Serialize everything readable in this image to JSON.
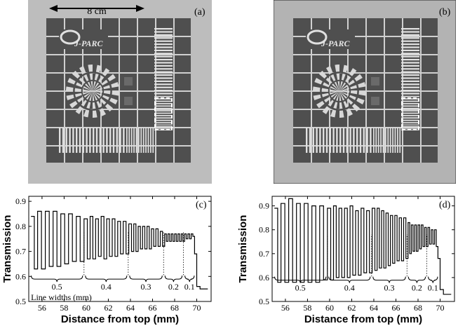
{
  "panels": {
    "a": {
      "tag": "(a)",
      "scale_label": "8 cm",
      "logo_text": "J-PARC"
    },
    "b": {
      "tag": "(b)",
      "logo_text": "J-PARC"
    }
  },
  "colors": {
    "background_gray": "#b9b9b9",
    "plate_dark": "#4f4f4f",
    "grid_light": "#d9d9d9",
    "trace": "#000000"
  },
  "chart_data": [
    {
      "id": "c",
      "tag": "(c)",
      "type": "line",
      "xlabel": "Distance from top (mm)",
      "ylabel": "Transmission",
      "xlim": [
        54.8,
        71.3
      ],
      "ylim": [
        0.5,
        0.92
      ],
      "xticks": [
        56,
        58,
        60,
        62,
        64,
        66,
        68,
        70
      ],
      "yticks": [
        0.5,
        0.6,
        0.7,
        0.8,
        0.9
      ],
      "yticklabels": [
        "0.5",
        "0.6",
        "0.7",
        "0.8",
        "0.9"
      ],
      "annotation": "Line widths (mm)",
      "groups": [
        {
          "label": "0.5",
          "x0": 54.9,
          "x1": 59.8
        },
        {
          "label": "0.4",
          "x0": 59.8,
          "x1": 63.8
        },
        {
          "label": "0.3",
          "x0": 63.8,
          "x1": 67.0
        },
        {
          "label": "0.2",
          "x0": 67.0,
          "x1": 68.8
        },
        {
          "label": "0.1",
          "x0": 68.8,
          "x1": 69.9
        }
      ],
      "dividers": [
        59.8,
        63.8,
        67.0,
        68.8
      ],
      "series": [
        {
          "x": [
            55.0,
            55.3,
            55.6,
            55.95,
            56.3,
            56.65,
            57.0,
            57.35,
            57.7,
            58.05,
            58.4,
            58.75,
            59.1,
            59.45,
            59.8,
            60.1,
            60.35,
            60.6,
            60.85,
            61.1,
            61.35,
            61.6,
            61.85,
            62.1,
            62.35,
            62.6,
            62.85,
            63.1,
            63.35,
            63.6,
            63.85,
            64.1,
            64.3,
            64.5,
            64.7,
            64.9,
            65.1,
            65.3,
            65.5,
            65.7,
            65.9,
            66.1,
            66.3,
            66.5,
            66.7,
            66.9,
            67.1,
            67.25,
            67.4,
            67.55,
            67.7,
            67.85,
            68.0,
            68.15,
            68.3,
            68.45,
            68.6,
            68.75,
            68.9,
            69.05,
            69.2,
            69.35,
            69.5,
            69.65,
            69.8,
            70.0,
            70.3,
            70.6,
            71.0
          ],
          "y": [
            0.84,
            0.63,
            0.86,
            0.63,
            0.86,
            0.64,
            0.86,
            0.64,
            0.85,
            0.65,
            0.85,
            0.66,
            0.84,
            0.66,
            0.83,
            0.67,
            0.84,
            0.67,
            0.83,
            0.68,
            0.84,
            0.67,
            0.83,
            0.68,
            0.83,
            0.68,
            0.82,
            0.69,
            0.82,
            0.69,
            0.81,
            0.7,
            0.81,
            0.7,
            0.8,
            0.71,
            0.8,
            0.71,
            0.8,
            0.71,
            0.79,
            0.72,
            0.79,
            0.72,
            0.78,
            0.72,
            0.77,
            0.74,
            0.77,
            0.74,
            0.77,
            0.74,
            0.77,
            0.74,
            0.77,
            0.74,
            0.77,
            0.74,
            0.77,
            0.75,
            0.77,
            0.75,
            0.77,
            0.76,
            0.69,
            0.56,
            0.55,
            0.55,
            0.55
          ]
        }
      ]
    },
    {
      "id": "d",
      "tag": "(d)",
      "type": "line",
      "xlabel": "Distance from top (mm)",
      "ylabel": "Transmission",
      "xlim": [
        54.8,
        71.3
      ],
      "ylim": [
        0.5,
        0.94
      ],
      "xticks": [
        56,
        58,
        60,
        62,
        64,
        66,
        68,
        70
      ],
      "yticks": [
        0.5,
        0.6,
        0.7,
        0.8,
        0.9
      ],
      "yticklabels": [
        "0.5",
        "0.6",
        "0.7",
        "0.8",
        "0.9"
      ],
      "groups": [
        {
          "label": "0.5",
          "x0": 54.9,
          "x1": 59.8
        },
        {
          "label": "0.4",
          "x0": 59.8,
          "x1": 63.8
        },
        {
          "label": "0.3",
          "x0": 63.8,
          "x1": 67.0
        },
        {
          "label": "0.2",
          "x0": 67.0,
          "x1": 68.8
        },
        {
          "label": "0.1",
          "x0": 68.8,
          "x1": 69.9
        }
      ],
      "dividers": [
        59.8,
        63.8,
        67.0,
        68.8
      ],
      "series": [
        {
          "x": [
            55.0,
            55.3,
            55.6,
            55.95,
            56.3,
            56.65,
            57.0,
            57.35,
            57.7,
            58.05,
            58.4,
            58.75,
            59.1,
            59.45,
            59.8,
            60.1,
            60.35,
            60.6,
            60.85,
            61.1,
            61.35,
            61.6,
            61.85,
            62.1,
            62.35,
            62.6,
            62.85,
            63.1,
            63.35,
            63.6,
            63.85,
            64.1,
            64.3,
            64.5,
            64.7,
            64.9,
            65.1,
            65.3,
            65.5,
            65.7,
            65.9,
            66.1,
            66.3,
            66.5,
            66.7,
            66.9,
            67.1,
            67.25,
            67.4,
            67.55,
            67.7,
            67.85,
            68.0,
            68.15,
            68.3,
            68.45,
            68.6,
            68.75,
            68.9,
            69.05,
            69.2,
            69.35,
            69.5,
            69.65,
            69.8,
            70.0,
            70.3,
            70.6,
            71.0
          ],
          "y": [
            0.89,
            0.58,
            0.91,
            0.58,
            0.93,
            0.58,
            0.91,
            0.58,
            0.91,
            0.58,
            0.9,
            0.58,
            0.9,
            0.59,
            0.89,
            0.59,
            0.9,
            0.6,
            0.89,
            0.6,
            0.89,
            0.6,
            0.9,
            0.61,
            0.88,
            0.61,
            0.89,
            0.62,
            0.88,
            0.62,
            0.89,
            0.63,
            0.89,
            0.64,
            0.88,
            0.64,
            0.87,
            0.65,
            0.86,
            0.66,
            0.86,
            0.67,
            0.85,
            0.67,
            0.85,
            0.68,
            0.83,
            0.7,
            0.82,
            0.71,
            0.82,
            0.71,
            0.82,
            0.72,
            0.82,
            0.73,
            0.81,
            0.73,
            0.81,
            0.74,
            0.8,
            0.74,
            0.8,
            0.73,
            0.68,
            0.55,
            0.53,
            0.53,
            0.53
          ]
        }
      ]
    }
  ]
}
